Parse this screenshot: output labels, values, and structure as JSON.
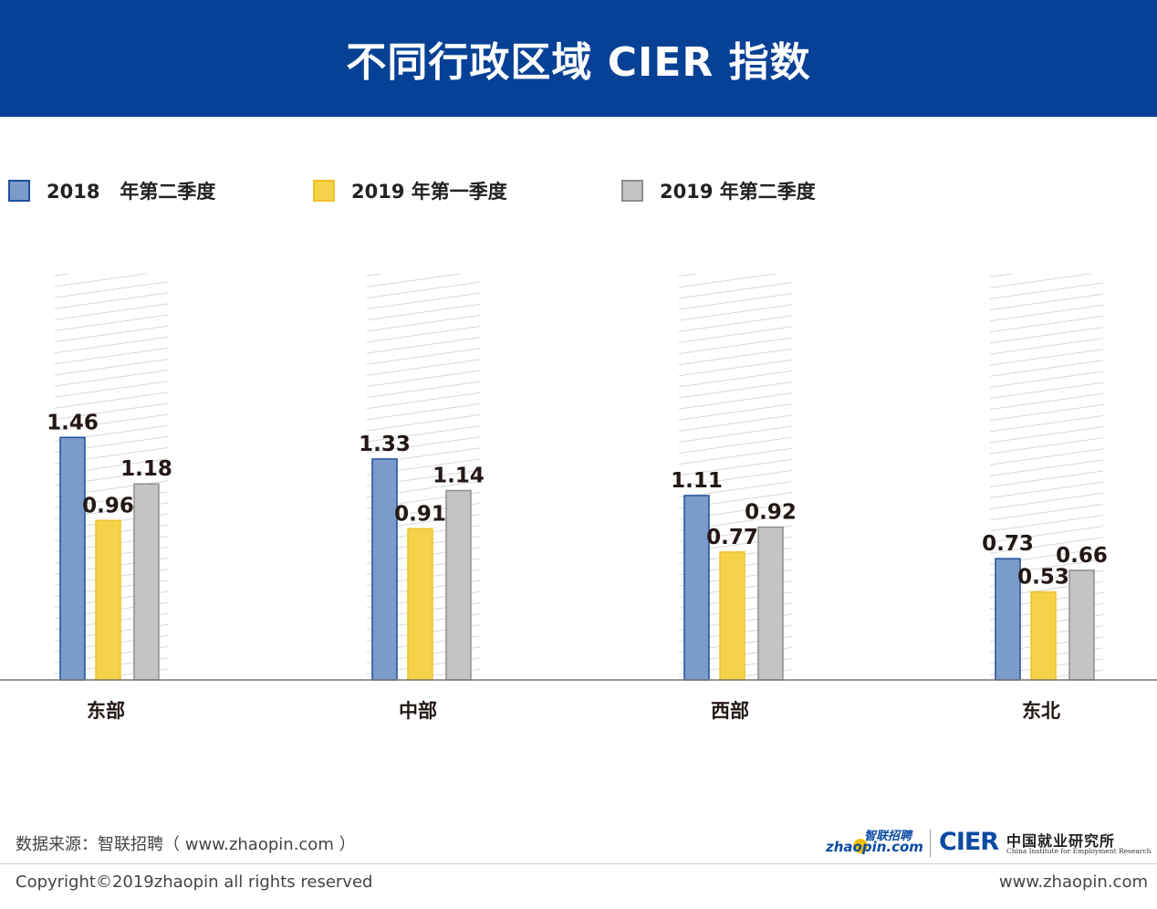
{
  "header": {
    "title": "不同行政区域 CIER 指数"
  },
  "colors": {
    "header_bg": "#074195",
    "series_2018q2": "#7b9ccb",
    "series_2019q1": "#f6d14a",
    "series_2019q2": "#c4c4c4"
  },
  "chart_data": {
    "type": "bar",
    "title": "不同行政区域 CIER 指数",
    "categories": [
      "东部",
      "中部",
      "西部",
      "东北"
    ],
    "series": [
      {
        "name": "2018   年第二季度",
        "values": [
          1.46,
          1.33,
          1.11,
          0.73
        ],
        "color": "#7b9ccb",
        "stroke": "#1f4f9c"
      },
      {
        "name": "2019 年第一季度",
        "values": [
          0.96,
          0.91,
          0.77,
          0.53
        ],
        "color": "#f6d14a",
        "stroke": "#f0c22a"
      },
      {
        "name": "2019 年第二季度",
        "values": [
          1.18,
          1.14,
          0.92,
          0.66
        ],
        "color": "#c4c4c4",
        "stroke": "#8e8e8e"
      }
    ],
    "value_labels": [
      [
        "1.46",
        "1.33",
        "1.11",
        "0.73"
      ],
      [
        "0.96",
        "0.91",
        "0.77",
        "0.53"
      ],
      [
        "1.18",
        "1.14",
        "0.92",
        "0.66"
      ]
    ],
    "xlabel": "",
    "ylabel": "",
    "ylim": [
      0,
      2.44
    ],
    "grid": false,
    "legend": "top-left"
  },
  "footer": {
    "source": "数据来源：智联招聘（ www.zhaopin.com ）",
    "copyright": "Copyright©2019zhaopin all rights reserved",
    "website": "www.zhaopin.com",
    "zhaopin_logo_cn": "智联招聘",
    "zhaopin_logo_en": "zhaopin.com",
    "cier_logo": "CIER",
    "cier_logo_cn": "中国就业研究所",
    "cier_logo_en": "China Institute for Employment Research"
  }
}
